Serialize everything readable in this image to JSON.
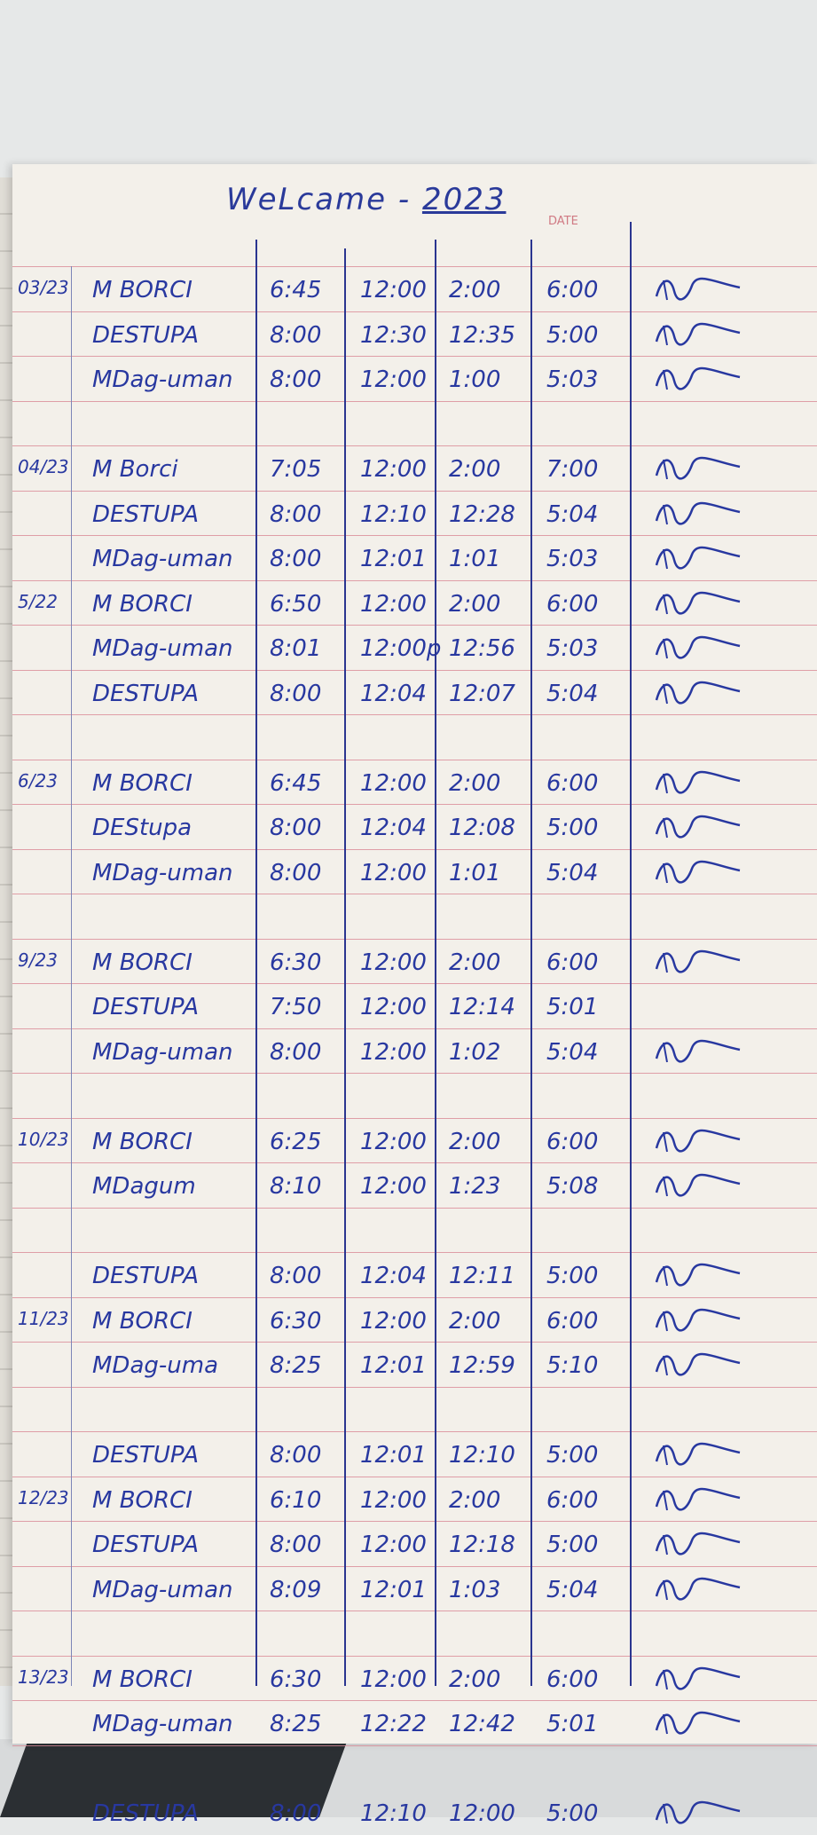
{
  "header": {
    "title": "WeLcame -",
    "year": "2023",
    "date_label": "DATE"
  },
  "ink_color": "#2838a0",
  "rows": [
    {
      "date": "03/23",
      "name": "M BORCI",
      "t1": "6:45",
      "t2": "12:00",
      "t3": "2:00",
      "t4": "6:00",
      "sig": true
    },
    {
      "date": "",
      "name": "DESTUPA",
      "t1": "8:00",
      "t2": "12:30",
      "t3": "12:35",
      "t4": "5:00",
      "sig": true
    },
    {
      "date": "",
      "name": "MDag-uman",
      "t1": "8:00",
      "t2": "12:00",
      "t3": "1:00",
      "t4": "5:03",
      "sig": true
    },
    {
      "blank": true
    },
    {
      "date": "04/23",
      "name": "M Borci",
      "t1": "7:05",
      "t2": "12:00",
      "t3": "2:00",
      "t4": "7:00",
      "sig": true
    },
    {
      "date": "",
      "name": "DESTUPA",
      "t1": "8:00",
      "t2": "12:10",
      "t3": "12:28",
      "t4": "5:04",
      "sig": true
    },
    {
      "date": "",
      "name": "MDag-uman",
      "t1": "8:00",
      "t2": "12:01",
      "t3": "1:01",
      "t4": "5:03",
      "sig": true
    },
    {
      "date": "5/22",
      "name": "M BORCI",
      "t1": "6:50",
      "t2": "12:00",
      "t3": "2:00",
      "t4": "6:00",
      "sig": true
    },
    {
      "date": "",
      "name": "MDag-uman",
      "t1": "8:01",
      "t2": "12:00p",
      "t3": "12:56",
      "t4": "5:03",
      "sig": true
    },
    {
      "date": "",
      "name": "DESTUPA",
      "t1": "8:00",
      "t2": "12:04",
      "t3": "12:07",
      "t4": "5:04",
      "sig": true
    },
    {
      "blank": true
    },
    {
      "date": "6/23",
      "name": "M BORCI",
      "t1": "6:45",
      "t2": "12:00",
      "t3": "2:00",
      "t4": "6:00",
      "sig": true
    },
    {
      "date": "",
      "name": "DEStupa",
      "t1": "8:00",
      "t2": "12:04",
      "t3": "12:08",
      "t4": "5:00",
      "sig": true
    },
    {
      "date": "",
      "name": "MDag-uman",
      "t1": "8:00",
      "t2": "12:00",
      "t3": "1:01",
      "t4": "5:04",
      "sig": true
    },
    {
      "blank": true
    },
    {
      "date": "9/23",
      "name": "M BORCI",
      "t1": "6:30",
      "t2": "12:00",
      "t3": "2:00",
      "t4": "6:00",
      "sig": true
    },
    {
      "date": "",
      "name": "DESTUPA",
      "t1": "7:50",
      "t2": "12:00",
      "t3": "12:14",
      "t4": "5:01",
      "sig": false
    },
    {
      "date": "",
      "name": "MDag-uman",
      "t1": "8:00",
      "t2": "12:00",
      "t3": "1:02",
      "t4": "5:04",
      "sig": true
    },
    {
      "blank": true
    },
    {
      "date": "10/23",
      "name": "M BORCI",
      "t1": "6:25",
      "t2": "12:00",
      "t3": "2:00",
      "t4": "6:00",
      "sig": true
    },
    {
      "date": "",
      "name": "MDagum",
      "t1": "8:10",
      "t2": "12:00",
      "t3": "1:23",
      "t4": "5:08",
      "sig": true
    },
    {
      "blank": true
    },
    {
      "date": "",
      "name": "DESTUPA",
      "t1": "8:00",
      "t2": "12:04",
      "t3": "12:11",
      "t4": "5:00",
      "sig": true
    },
    {
      "date": "11/23",
      "name": "M BORCI",
      "t1": "6:30",
      "t2": "12:00",
      "t3": "2:00",
      "t4": "6:00",
      "sig": true
    },
    {
      "date": "",
      "name": "MDag-uma",
      "t1": "8:25",
      "t2": "12:01",
      "t3": "12:59",
      "t4": "5:10",
      "sig": true
    },
    {
      "blank": true
    },
    {
      "date": "",
      "name": "DESTUPA",
      "t1": "8:00",
      "t2": "12:01",
      "t3": "12:10",
      "t4": "5:00",
      "sig": true
    },
    {
      "date": "12/23",
      "name": "M BORCI",
      "t1": "6:10",
      "t2": "12:00",
      "t3": "2:00",
      "t4": "6:00",
      "sig": true
    },
    {
      "date": "",
      "name": "DESTUPA",
      "t1": "8:00",
      "t2": "12:00",
      "t3": "12:18",
      "t4": "5:00",
      "sig": true
    },
    {
      "date": "",
      "name": "MDag-uman",
      "t1": "8:09",
      "t2": "12:01",
      "t3": "1:03",
      "t4": "5:04",
      "sig": true
    },
    {
      "blank": true
    },
    {
      "date": "13/23",
      "name": "M BORCI",
      "t1": "6:30",
      "t2": "12:00",
      "t3": "2:00",
      "t4": "6:00",
      "sig": true
    },
    {
      "date": "",
      "name": "MDag-uman",
      "t1": "8:25",
      "t2": "12:22",
      "t3": "12:42",
      "t4": "5:01",
      "sig": true
    },
    {
      "blank": true
    },
    {
      "date": "",
      "name": "DESTUPA",
      "t1": "8:00",
      "t2": "12:10",
      "t3": "12:00",
      "t4": "5:00",
      "sig": true
    }
  ]
}
